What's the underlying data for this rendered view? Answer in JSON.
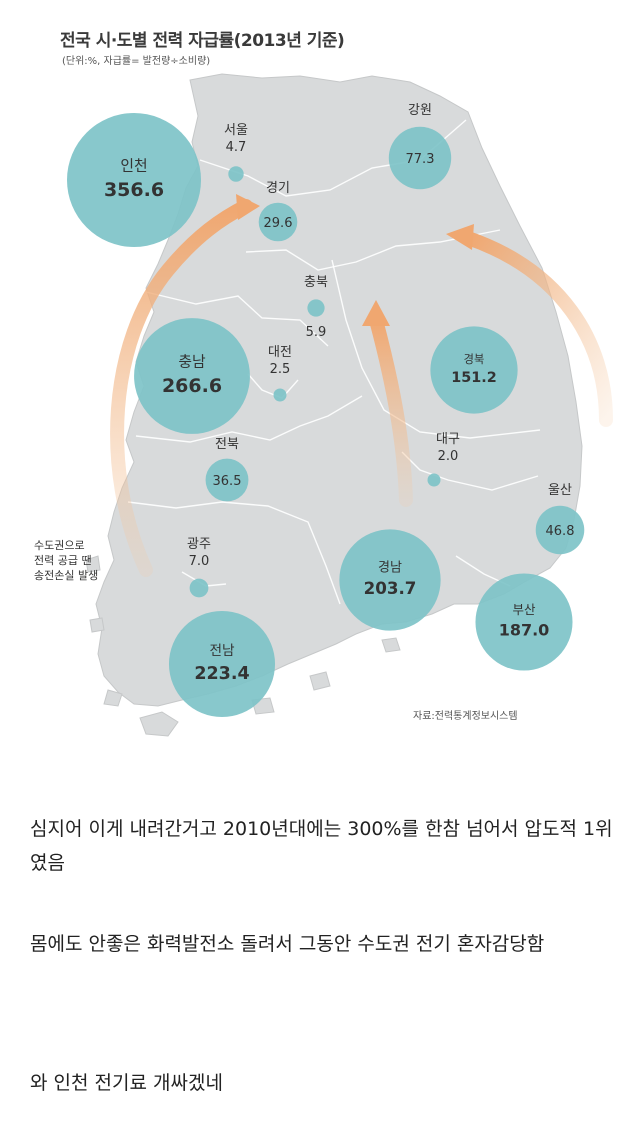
{
  "figure": {
    "title": "전국 시·도별 전력 자급률(2013년 기준)",
    "subtitle": "(단위:%, 자급률= 발전량÷소비량)",
    "source": "자료:전력통계정보시스템",
    "note_lines": [
      "수도권으로",
      "전력 공급 땐",
      "송전손실 발생"
    ]
  },
  "chart_data": {
    "type": "bubble-map",
    "title": "전국 시·도별 전력 자급률(2013년 기준)",
    "unit": "%",
    "regions": [
      {
        "name": "서울",
        "value": 4.7
      },
      {
        "name": "인천",
        "value": 356.6
      },
      {
        "name": "경기",
        "value": 29.6
      },
      {
        "name": "강원",
        "value": 77.3
      },
      {
        "name": "충북",
        "value": 5.9
      },
      {
        "name": "충남",
        "value": 266.6
      },
      {
        "name": "대전",
        "value": 2.5
      },
      {
        "name": "경북",
        "value": 151.2
      },
      {
        "name": "전북",
        "value": 36.5
      },
      {
        "name": "대구",
        "value": 2.0
      },
      {
        "name": "울산",
        "value": 46.8
      },
      {
        "name": "광주",
        "value": 7.0
      },
      {
        "name": "경남",
        "value": 203.7
      },
      {
        "name": "부산",
        "value": 187.0
      },
      {
        "name": "전남",
        "value": 223.4
      }
    ],
    "colors": {
      "bubble": "#7ec3c8",
      "map": "#d7d9da",
      "arrow": "#f1b27c"
    }
  },
  "post": {
    "paragraph1": "심지어 이게 내려간거고 2010년대에는 300%를 한참 넘어서 압도적 1위였음",
    "paragraph2": "몸에도 안좋은 화력발전소 돌려서 그동안 수도권 전기 혼자감당함",
    "paragraph3": "와 인천 전기료 개싸겠네"
  }
}
